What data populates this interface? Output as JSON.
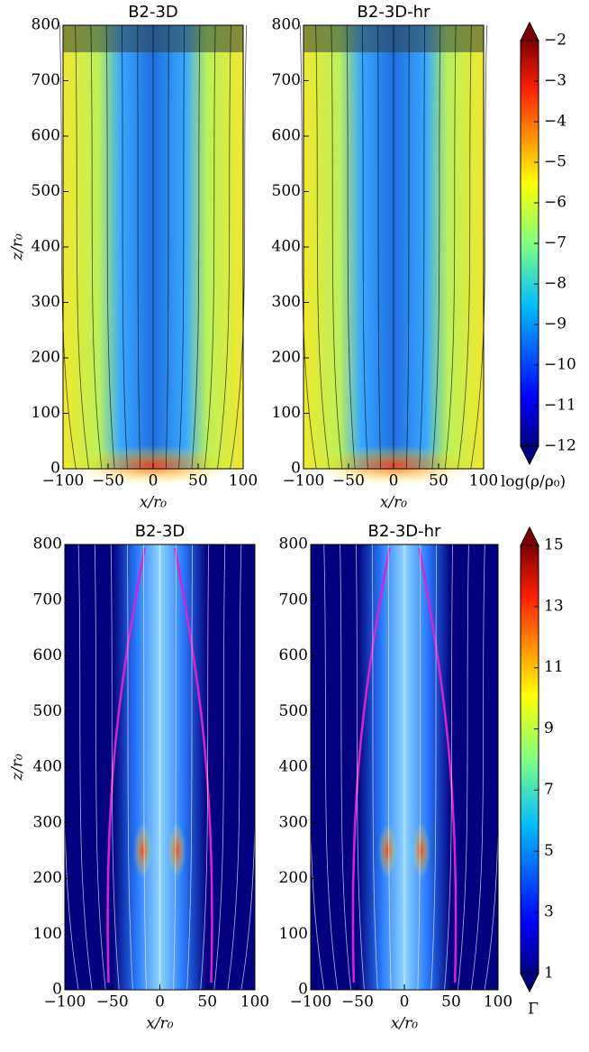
{
  "chart_data": [
    {
      "type": "heatmap",
      "title": "B2-3D",
      "xlabel": "x/r₀",
      "ylabel": "z/r₀",
      "xlim": [
        -100,
        100
      ],
      "ylim": [
        0,
        800
      ],
      "xticks": [
        {
          "value": -100,
          "label": "−100"
        },
        {
          "value": -50,
          "label": "−50"
        },
        0,
        50,
        100
      ],
      "yticks": [
        0,
        100,
        200,
        300,
        400,
        500,
        600,
        700,
        800
      ]
    },
    {
      "type": "heatmap",
      "title": "B2-3D-hr",
      "xlabel": "x/r₀",
      "xlim": [
        -100,
        100
      ],
      "ylim": [
        0,
        800
      ],
      "xticks": [
        {
          "value": -100,
          "label": "−100"
        },
        {
          "value": -50,
          "label": "−50"
        },
        0,
        50,
        100
      ],
      "yticks": [
        0,
        100,
        200,
        300,
        400,
        500,
        600,
        700,
        800
      ]
    },
    {
      "type": "colorbar",
      "label": "log(ρ/ρ₀)",
      "ylim": [
        -12,
        -2
      ],
      "yticks": [
        {
          "value": -2,
          "label": "−2"
        },
        {
          "value": -3,
          "label": "−3"
        },
        {
          "value": -4,
          "label": "−4"
        },
        {
          "value": -5,
          "label": "−5"
        },
        {
          "value": -6,
          "label": "−6"
        },
        {
          "value": -7,
          "label": "−7"
        },
        {
          "value": -8,
          "label": "−8"
        },
        {
          "value": -9,
          "label": "−9"
        },
        {
          "value": -10,
          "label": "−10"
        },
        {
          "value": -11,
          "label": "−11"
        },
        {
          "value": -12,
          "label": "−12"
        }
      ]
    },
    {
      "type": "heatmap",
      "title": "B2-3D",
      "xlabel": "x/r₀",
      "ylabel": "z/r₀",
      "xlim": [
        -100,
        100
      ],
      "ylim": [
        0,
        800
      ],
      "xticks": [
        {
          "value": -100,
          "label": "−100"
        },
        {
          "value": -50,
          "label": "−50"
        },
        0,
        50,
        100
      ],
      "yticks": [
        0,
        100,
        200,
        300,
        400,
        500,
        600,
        700,
        800
      ]
    },
    {
      "type": "heatmap",
      "title": "B2-3D-hr",
      "xlabel": "x/r₀",
      "xlim": [
        -100,
        100
      ],
      "ylim": [
        0,
        800
      ],
      "xticks": [
        {
          "value": -100,
          "label": "−100"
        },
        {
          "value": -50,
          "label": "−50"
        },
        0,
        50,
        100
      ],
      "yticks": [
        0,
        100,
        200,
        300,
        400,
        500,
        600,
        700,
        800
      ]
    },
    {
      "type": "colorbar",
      "label": "Γ",
      "ylim": [
        1,
        15
      ],
      "yticks": [
        1,
        3,
        5,
        7,
        9,
        11,
        13,
        15
      ]
    }
  ]
}
